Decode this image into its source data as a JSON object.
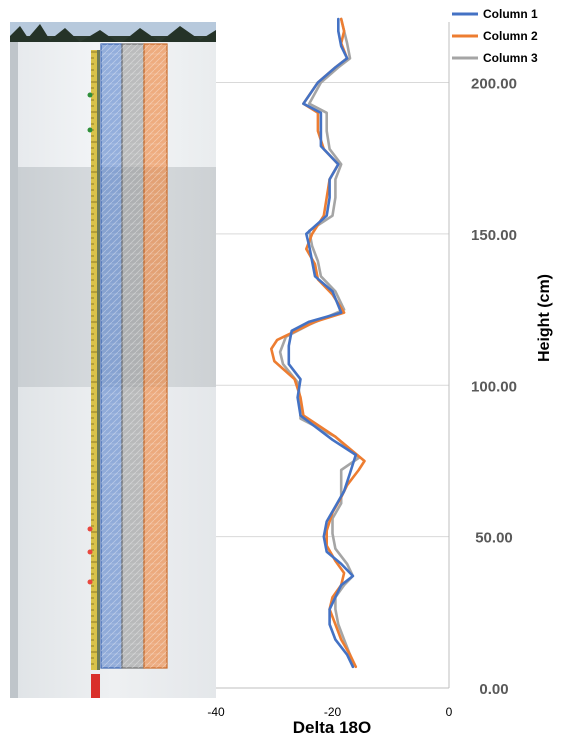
{
  "chart_data": {
    "type": "line",
    "orientation": "vertical-profile",
    "title": "",
    "xlabel": "Delta 18O",
    "ylabel": "Height (cm)",
    "xlim": [
      -40,
      0
    ],
    "ylim": [
      0,
      220
    ],
    "x_ticks": [
      "-40",
      "-20",
      "0"
    ],
    "y_ticks": [
      "0.00",
      "50.00",
      "100.00",
      "150.00",
      "200.00"
    ],
    "grid": "horizontal",
    "legend": "top-right",
    "series": [
      {
        "name": "Column 1",
        "color": "#4472C4",
        "points": [
          {
            "x": -16.5,
            "y": 7
          },
          {
            "x": -17.5,
            "y": 11
          },
          {
            "x": -19.5,
            "y": 16
          },
          {
            "x": -20.5,
            "y": 21
          },
          {
            "x": -20.5,
            "y": 26
          },
          {
            "x": -19.5,
            "y": 30
          },
          {
            "x": -18.5,
            "y": 34
          },
          {
            "x": -16.5,
            "y": 37
          },
          {
            "x": -18.5,
            "y": 41
          },
          {
            "x": -21.0,
            "y": 45
          },
          {
            "x": -21.5,
            "y": 50
          },
          {
            "x": -21.0,
            "y": 55
          },
          {
            "x": -19.5,
            "y": 60
          },
          {
            "x": -18.0,
            "y": 65
          },
          {
            "x": -17.0,
            "y": 71
          },
          {
            "x": -16.0,
            "y": 77
          },
          {
            "x": -20.0,
            "y": 82
          },
          {
            "x": -25.5,
            "y": 90
          },
          {
            "x": -26.0,
            "y": 96
          },
          {
            "x": -25.5,
            "y": 102
          },
          {
            "x": -27.5,
            "y": 107
          },
          {
            "x": -27.5,
            "y": 113
          },
          {
            "x": -27.0,
            "y": 118
          },
          {
            "x": -24.0,
            "y": 121
          },
          {
            "x": -18.5,
            "y": 124
          },
          {
            "x": -20.0,
            "y": 131
          },
          {
            "x": -23.0,
            "y": 136
          },
          {
            "x": -23.5,
            "y": 141
          },
          {
            "x": -24.0,
            "y": 146
          },
          {
            "x": -24.5,
            "y": 150
          },
          {
            "x": -21.0,
            "y": 156
          },
          {
            "x": -20.5,
            "y": 162
          },
          {
            "x": -20.5,
            "y": 168
          },
          {
            "x": -19.0,
            "y": 173
          },
          {
            "x": -22.0,
            "y": 179
          },
          {
            "x": -22.0,
            "y": 184
          },
          {
            "x": -22.0,
            "y": 190
          },
          {
            "x": -25.0,
            "y": 193
          },
          {
            "x": -22.5,
            "y": 200
          },
          {
            "x": -19.5,
            "y": 205
          },
          {
            "x": -17.5,
            "y": 208
          },
          {
            "x": -18.5,
            "y": 212
          },
          {
            "x": -19.0,
            "y": 217
          },
          {
            "x": -19.0,
            "y": 221
          }
        ]
      },
      {
        "name": "Column 2",
        "color": "#ED7D31",
        "points": [
          {
            "x": -16.0,
            "y": 7
          },
          {
            "x": -17.0,
            "y": 11
          },
          {
            "x": -18.5,
            "y": 16
          },
          {
            "x": -19.5,
            "y": 21
          },
          {
            "x": -20.5,
            "y": 26
          },
          {
            "x": -20.0,
            "y": 30
          },
          {
            "x": -18.5,
            "y": 34
          },
          {
            "x": -18.0,
            "y": 38
          },
          {
            "x": -19.5,
            "y": 42
          },
          {
            "x": -21.0,
            "y": 47
          },
          {
            "x": -21.0,
            "y": 52
          },
          {
            "x": -20.0,
            "y": 58
          },
          {
            "x": -18.5,
            "y": 63
          },
          {
            "x": -17.5,
            "y": 67
          },
          {
            "x": -15.5,
            "y": 72
          },
          {
            "x": -14.5,
            "y": 75
          },
          {
            "x": -19.5,
            "y": 83
          },
          {
            "x": -25.0,
            "y": 90
          },
          {
            "x": -25.5,
            "y": 96
          },
          {
            "x": -26.5,
            "y": 102
          },
          {
            "x": -30.0,
            "y": 108
          },
          {
            "x": -30.5,
            "y": 112
          },
          {
            "x": -29.5,
            "y": 115
          },
          {
            "x": -23.0,
            "y": 121
          },
          {
            "x": -18.0,
            "y": 124
          },
          {
            "x": -20.0,
            "y": 130
          },
          {
            "x": -22.5,
            "y": 135
          },
          {
            "x": -23.0,
            "y": 140
          },
          {
            "x": -24.5,
            "y": 145
          },
          {
            "x": -23.5,
            "y": 150
          },
          {
            "x": -21.5,
            "y": 156
          },
          {
            "x": -21.0,
            "y": 162
          },
          {
            "x": -20.5,
            "y": 168
          },
          {
            "x": -19.0,
            "y": 173
          },
          {
            "x": -21.5,
            "y": 178
          },
          {
            "x": -22.5,
            "y": 184
          },
          {
            "x": -22.5,
            "y": 190
          },
          {
            "x": -25.0,
            "y": 193
          },
          {
            "x": -22.5,
            "y": 200
          },
          {
            "x": -19.5,
            "y": 205
          },
          {
            "x": -17.5,
            "y": 208
          },
          {
            "x": -18.5,
            "y": 213
          },
          {
            "x": -18.0,
            "y": 217
          },
          {
            "x": -18.5,
            "y": 221
          }
        ]
      },
      {
        "name": "Column 3",
        "color": "#A5A5A5",
        "points": [
          {
            "x": -16.5,
            "y": 7
          },
          {
            "x": -17.0,
            "y": 11
          },
          {
            "x": -18.0,
            "y": 16
          },
          {
            "x": -19.0,
            "y": 21
          },
          {
            "x": -19.5,
            "y": 26
          },
          {
            "x": -19.5,
            "y": 30
          },
          {
            "x": -18.0,
            "y": 34
          },
          {
            "x": -16.5,
            "y": 37
          },
          {
            "x": -17.5,
            "y": 41
          },
          {
            "x": -19.5,
            "y": 46
          },
          {
            "x": -20.0,
            "y": 51
          },
          {
            "x": -20.0,
            "y": 56
          },
          {
            "x": -18.5,
            "y": 61
          },
          {
            "x": -18.5,
            "y": 67
          },
          {
            "x": -18.5,
            "y": 72
          },
          {
            "x": -15.5,
            "y": 76
          },
          {
            "x": -19.5,
            "y": 83
          },
          {
            "x": -25.5,
            "y": 89
          },
          {
            "x": -25.5,
            "y": 95
          },
          {
            "x": -26.0,
            "y": 101
          },
          {
            "x": -28.5,
            "y": 107
          },
          {
            "x": -29.0,
            "y": 111
          },
          {
            "x": -28.0,
            "y": 116
          },
          {
            "x": -24.0,
            "y": 120
          },
          {
            "x": -18.0,
            "y": 125
          },
          {
            "x": -19.5,
            "y": 131
          },
          {
            "x": -22.0,
            "y": 136
          },
          {
            "x": -22.5,
            "y": 141
          },
          {
            "x": -23.5,
            "y": 146
          },
          {
            "x": -24.0,
            "y": 151
          },
          {
            "x": -20.0,
            "y": 156
          },
          {
            "x": -19.5,
            "y": 162
          },
          {
            "x": -19.5,
            "y": 168
          },
          {
            "x": -18.5,
            "y": 173
          },
          {
            "x": -20.5,
            "y": 178
          },
          {
            "x": -21.0,
            "y": 184
          },
          {
            "x": -21.0,
            "y": 190
          },
          {
            "x": -24.0,
            "y": 193
          },
          {
            "x": -22.0,
            "y": 200
          },
          {
            "x": -19.0,
            "y": 205
          },
          {
            "x": -17.0,
            "y": 208
          },
          {
            "x": -17.5,
            "y": 213
          },
          {
            "x": -18.0,
            "y": 217
          },
          {
            "x": -18.5,
            "y": 221
          }
        ]
      }
    ]
  },
  "photo": {
    "description_icon": "snow-pit-photo-with-sampling-columns",
    "column_colors": [
      "#4472C4",
      "#A5A5A5",
      "#ED7D31"
    ]
  }
}
